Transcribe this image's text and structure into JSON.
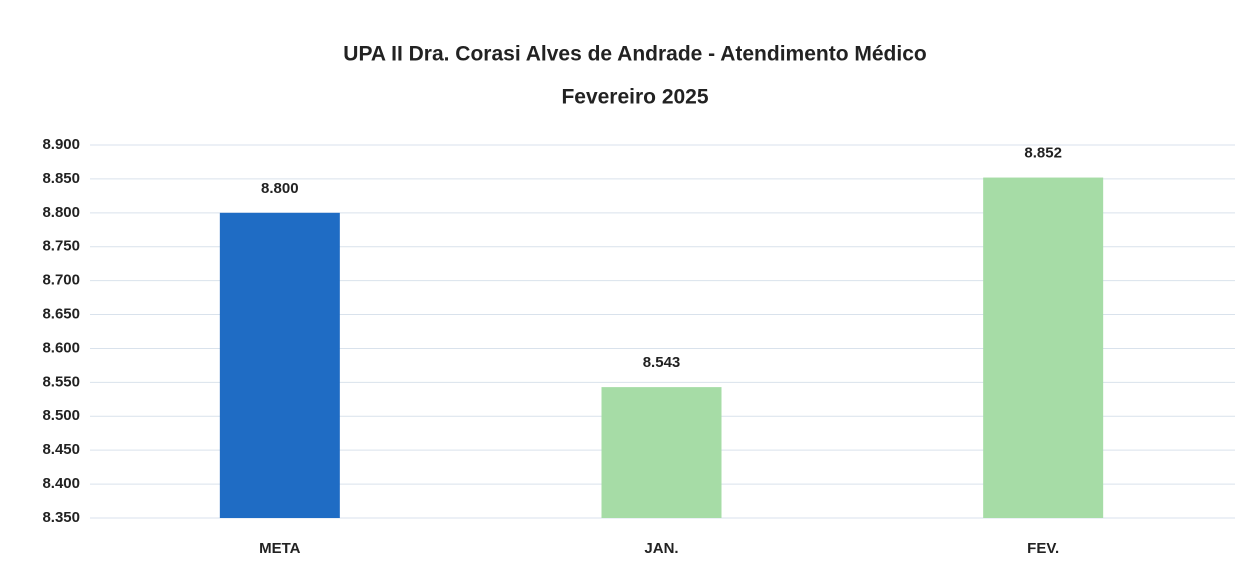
{
  "chart_data": {
    "type": "bar",
    "title": "UPA II Dra. Corasi Alves de Andrade - Atendimento Médico",
    "subtitle": "Fevereiro 2025",
    "categories": [
      "META",
      "JAN.",
      "FEV."
    ],
    "values": [
      8800,
      8543,
      8852
    ],
    "value_labels": [
      "8.800",
      "8.543",
      "8.852"
    ],
    "colors": [
      "#1f6cc4",
      "#a6dca6",
      "#a6dca6"
    ],
    "ylim": [
      8350,
      8900
    ],
    "yticks": [
      {
        "value": 8350,
        "label": "8.350"
      },
      {
        "value": 8400,
        "label": "8.400"
      },
      {
        "value": 8450,
        "label": "8.450"
      },
      {
        "value": 8500,
        "label": "8.500"
      },
      {
        "value": 8550,
        "label": "8.550"
      },
      {
        "value": 8600,
        "label": "8.600"
      },
      {
        "value": 8650,
        "label": "8.650"
      },
      {
        "value": 8700,
        "label": "8.700"
      },
      {
        "value": 8750,
        "label": "8.750"
      },
      {
        "value": 8800,
        "label": "8.800"
      },
      {
        "value": 8850,
        "label": "8.850"
      },
      {
        "value": 8900,
        "label": "8.900"
      }
    ],
    "grid": true
  }
}
